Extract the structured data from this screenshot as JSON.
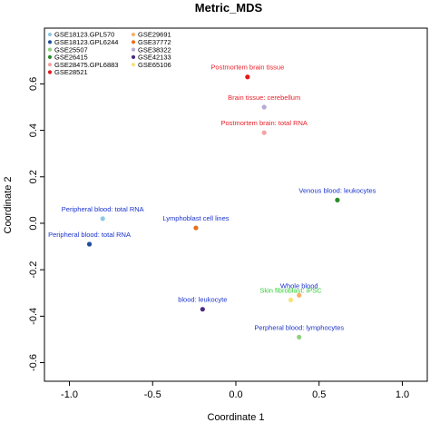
{
  "chart_data": {
    "type": "scatter",
    "title": "Metric_MDS",
    "xlabel": "Coordinate 1",
    "ylabel": "Coordinate 2",
    "xlim": [
      -1.15,
      1.15
    ],
    "ylim": [
      -0.68,
      0.84
    ],
    "xticks": [
      -1.0,
      -0.5,
      0.0,
      0.5,
      1.0
    ],
    "xtick_labels": [
      "-1.0",
      "-0.5",
      "0.0",
      "0.5",
      "1.0"
    ],
    "yticks": [
      -0.6,
      -0.4,
      -0.2,
      0.0,
      0.2,
      0.4,
      0.6
    ],
    "ytick_labels": [
      "-0.6",
      "-0.4",
      "-0.2",
      "0.0",
      "0.2",
      "0.4",
      "0.6"
    ],
    "grid": false,
    "legend_position": "top-left",
    "legend_columns": 2,
    "series": [
      {
        "name": "GSE18123.GPL570",
        "color": "#8ecae6",
        "points": [
          {
            "x": -0.8,
            "y": 0.02,
            "label": "Peripheral blood: total RNA",
            "label_color": "#1a33cc"
          }
        ]
      },
      {
        "name": "GSE18123.GPL6244",
        "color": "#1f4e9c",
        "points": [
          {
            "x": -0.88,
            "y": -0.09,
            "label": "Peripheral blood: total RNA",
            "label_color": "#1a33cc"
          }
        ]
      },
      {
        "name": "GSE25507",
        "color": "#8fd17f",
        "points": [
          {
            "x": 0.38,
            "y": -0.49,
            "label": "Perpheral blood: lymphocytes",
            "label_color": "#1a33cc"
          }
        ]
      },
      {
        "name": "GSE26415",
        "color": "#2a8c2a",
        "points": [
          {
            "x": 0.61,
            "y": 0.1,
            "label": "Venous blood: leukocytes",
            "label_color": "#1a33cc"
          }
        ]
      },
      {
        "name": "GSE28475.GPL6883",
        "color": "#f4a3a3",
        "points": [
          {
            "x": 0.17,
            "y": 0.39,
            "label": "Postmortem brain: total RNA",
            "label_color": "#e8202a"
          }
        ]
      },
      {
        "name": "GSE28521",
        "color": "#e31a1c",
        "points": [
          {
            "x": 0.07,
            "y": 0.63,
            "label": "Postmortem brain tissue",
            "label_color": "#e8202a"
          }
        ]
      },
      {
        "name": "GSE29691",
        "color": "#f6b26b",
        "points": [
          {
            "x": 0.38,
            "y": -0.31,
            "label": "Whole blood",
            "label_color": "#1a33cc"
          }
        ]
      },
      {
        "name": "GSE37772",
        "color": "#e8711c",
        "points": [
          {
            "x": -0.24,
            "y": -0.02,
            "label": "Lymphoblast cell lines",
            "label_color": "#1a33cc"
          }
        ]
      },
      {
        "name": "GSE38322",
        "color": "#b8a9d6",
        "points": [
          {
            "x": 0.17,
            "y": 0.5,
            "label": "Brain tissue: cerebellum",
            "label_color": "#e8202a"
          }
        ]
      },
      {
        "name": "GSE42133",
        "color": "#4a2c82",
        "points": [
          {
            "x": -0.2,
            "y": -0.37,
            "label": "blood: leukocyte",
            "label_color": "#1a33cc"
          }
        ]
      },
      {
        "name": "GSE65106",
        "color": "#f7e27a",
        "points": [
          {
            "x": 0.33,
            "y": -0.33,
            "label": "Skin fibroblast: iPSC",
            "label_color": "#33cc33"
          }
        ]
      }
    ]
  }
}
